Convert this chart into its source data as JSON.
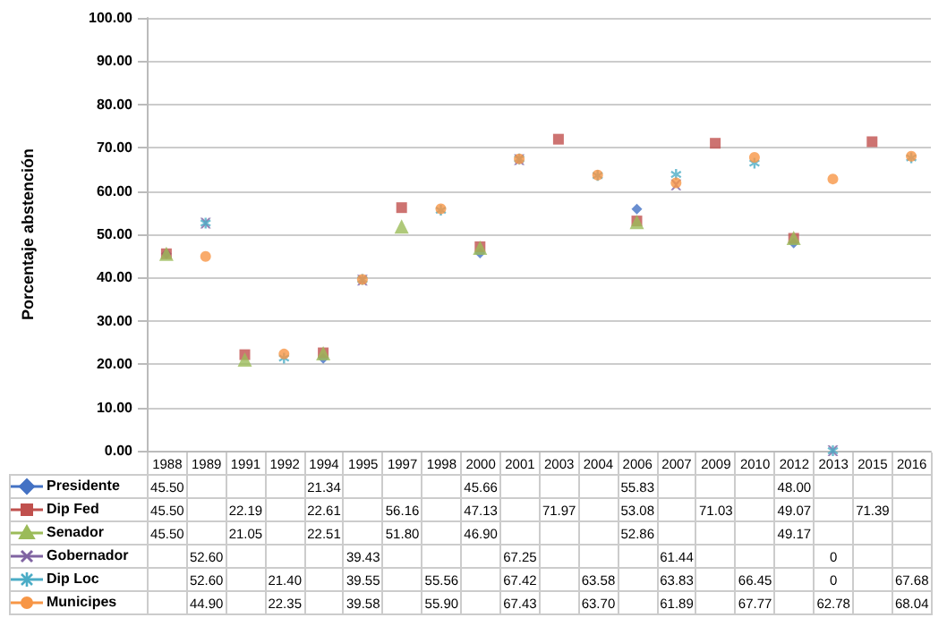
{
  "chart_data": {
    "type": "scatter",
    "ylabel": "Porcentaje abstención",
    "categories": [
      "1988",
      "1989",
      "1991",
      "1992",
      "1994",
      "1995",
      "1997",
      "1998",
      "2000",
      "2001",
      "2003",
      "2004",
      "2006",
      "2007",
      "2009",
      "2010",
      "2012",
      "2013",
      "2015",
      "2016"
    ],
    "series": [
      {
        "name": "Presidente",
        "color": "#4472c4",
        "marker": "diamond",
        "values": [
          45.5,
          null,
          null,
          null,
          21.34,
          null,
          null,
          null,
          45.66,
          null,
          null,
          null,
          55.83,
          null,
          null,
          null,
          48.0,
          null,
          null,
          null
        ],
        "value_labels": [
          "45.50",
          null,
          null,
          null,
          "21.34",
          null,
          null,
          null,
          "45.66",
          null,
          null,
          null,
          "55.83",
          null,
          null,
          null,
          "48.00",
          null,
          null,
          null
        ]
      },
      {
        "name": "Dip Fed",
        "color": "#c0504d",
        "marker": "square",
        "values": [
          45.5,
          null,
          22.19,
          null,
          22.61,
          null,
          56.16,
          null,
          47.13,
          null,
          71.97,
          null,
          53.08,
          null,
          71.03,
          null,
          49.07,
          null,
          71.39,
          null
        ],
        "value_labels": [
          "45.50",
          null,
          "22.19",
          null,
          "22.61",
          null,
          "56.16",
          null,
          "47.13",
          null,
          "71.97",
          null,
          "53.08",
          null,
          "71.03",
          null,
          "49.07",
          null,
          "71.39",
          null
        ]
      },
      {
        "name": "Senador",
        "color": "#9bbb59",
        "marker": "triangle",
        "values": [
          45.5,
          null,
          21.05,
          null,
          22.51,
          null,
          51.8,
          null,
          46.9,
          null,
          null,
          null,
          52.86,
          null,
          null,
          null,
          49.17,
          null,
          null,
          null
        ],
        "value_labels": [
          "45.50",
          null,
          "21.05",
          null,
          "22.51",
          null,
          "51.80",
          null,
          "46.90",
          null,
          null,
          null,
          "52.86",
          null,
          null,
          null,
          "49.17",
          null,
          null,
          null
        ]
      },
      {
        "name": "Gobernador",
        "color": "#8064a2",
        "marker": "cross",
        "values": [
          null,
          52.6,
          null,
          null,
          null,
          39.43,
          null,
          null,
          null,
          67.25,
          null,
          null,
          null,
          61.44,
          null,
          null,
          null,
          0,
          null,
          null
        ],
        "value_labels": [
          null,
          "52.60",
          null,
          null,
          null,
          "39.43",
          null,
          null,
          null,
          "67.25",
          null,
          null,
          null,
          "61.44",
          null,
          null,
          null,
          "0",
          null,
          null
        ]
      },
      {
        "name": "Dip Loc",
        "color": "#4bacc6",
        "marker": "star",
        "values": [
          null,
          52.6,
          null,
          21.4,
          null,
          39.55,
          null,
          55.56,
          null,
          67.42,
          null,
          63.58,
          null,
          63.83,
          null,
          66.45,
          null,
          0,
          null,
          67.68
        ],
        "value_labels": [
          null,
          "52.60",
          null,
          "21.40",
          null,
          "39.55",
          null,
          "55.56",
          null,
          "67.42",
          null,
          "63.58",
          null,
          "63.83",
          null,
          "66.45",
          null,
          "0",
          null,
          "67.68"
        ]
      },
      {
        "name": "Municipes",
        "color": "#f79646",
        "marker": "circle",
        "values": [
          null,
          44.9,
          null,
          22.35,
          null,
          39.58,
          null,
          55.9,
          null,
          67.43,
          null,
          63.7,
          null,
          61.89,
          null,
          67.77,
          null,
          62.78,
          null,
          68.04
        ],
        "value_labels": [
          null,
          "44.90",
          null,
          "22.35",
          null,
          "39.58",
          null,
          "55.90",
          null,
          "67.43",
          null,
          "63.70",
          null,
          "61.89",
          null,
          "67.77",
          null,
          "62.78",
          null,
          "68.04"
        ]
      }
    ],
    "ylim": [
      0,
      100
    ],
    "yticks": [
      {
        "value": 0,
        "label": "0.00"
      },
      {
        "value": 10,
        "label": "10.00"
      },
      {
        "value": 20,
        "label": "20.00"
      },
      {
        "value": 30,
        "label": "30.00"
      },
      {
        "value": 40,
        "label": "40.00"
      },
      {
        "value": 50,
        "label": "50.00"
      },
      {
        "value": 60,
        "label": "60.00"
      },
      {
        "value": 70,
        "label": "70.00"
      },
      {
        "value": 80,
        "label": "80.00"
      },
      {
        "value": 90,
        "label": "90.00"
      },
      {
        "value": 100,
        "label": "100.00"
      }
    ],
    "grid": "y",
    "legend": "bottom"
  }
}
